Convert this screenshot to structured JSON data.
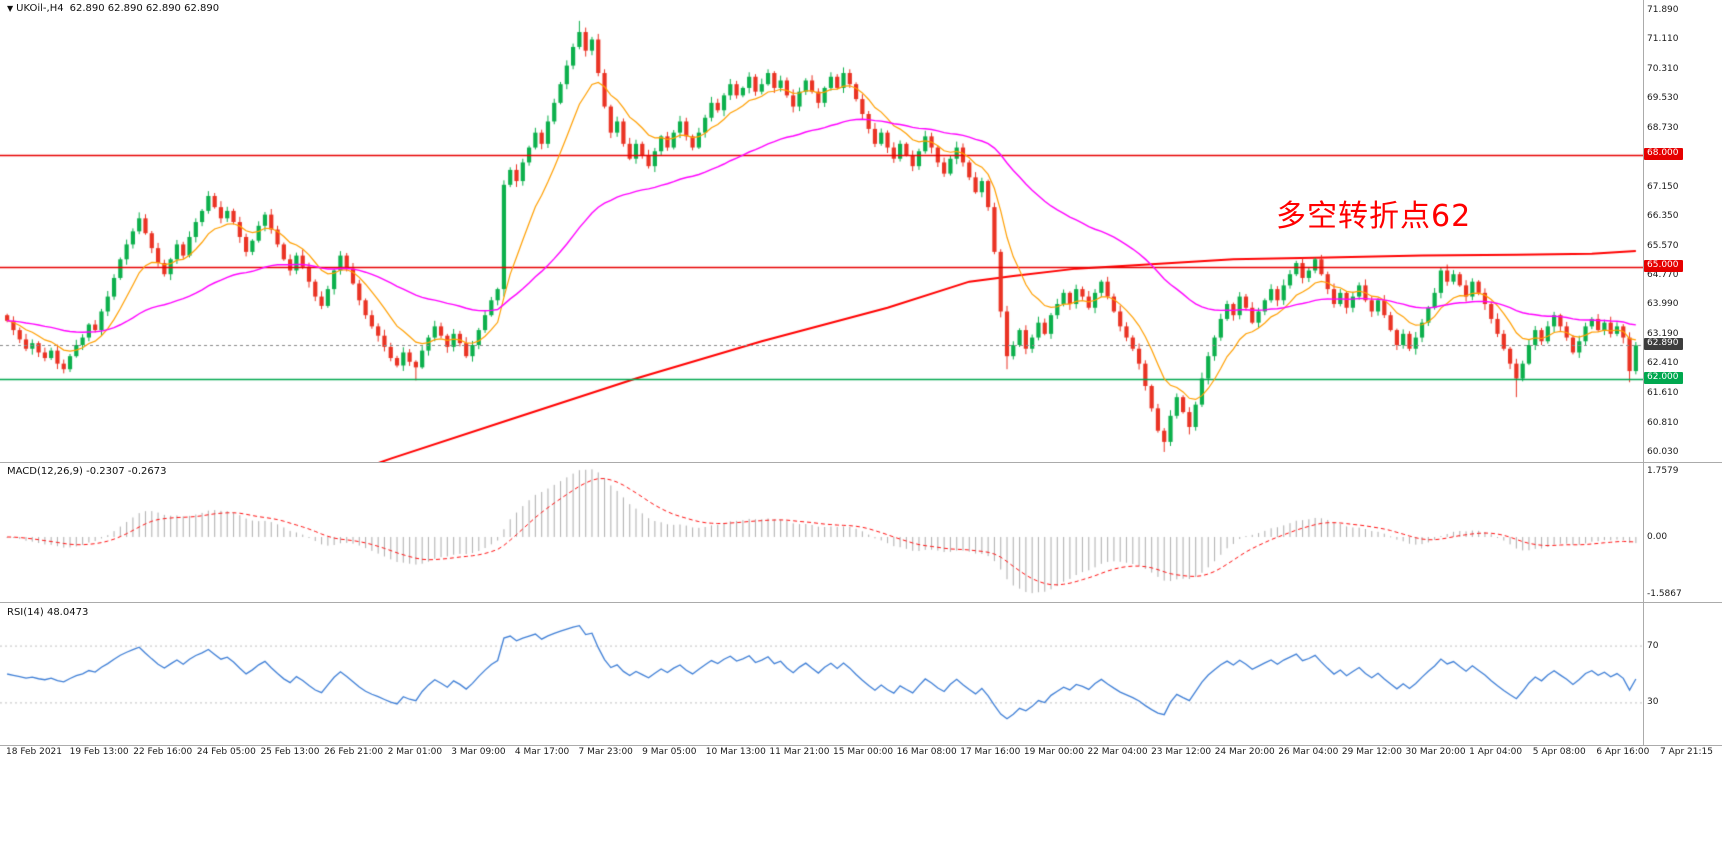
{
  "header": {
    "dropdown_icon": "▼",
    "title": "UKOil-,H4",
    "ohlc": "62.890 62.890 62.890 62.890"
  },
  "annotation": {
    "text": "多空转折点62",
    "color": "#ff0000"
  },
  "macd_panel": {
    "title": "MACD(12,26,9) -0.2307 -0.2673",
    "axis": {
      "max": "1.7579",
      "zero": "0.00",
      "min": "-1.5867"
    }
  },
  "rsi_panel": {
    "title": "RSI(14) 48.0473"
  },
  "price_axis": {
    "labels": [
      {
        "text": "71.890",
        "price": 71.89
      },
      {
        "text": "71.110",
        "price": 71.11
      },
      {
        "text": "70.310",
        "price": 70.31
      },
      {
        "text": "69.530",
        "price": 69.53
      },
      {
        "text": "68.730",
        "price": 68.73
      },
      {
        "text": "67.150",
        "price": 67.15
      },
      {
        "text": "66.350",
        "price": 66.35
      },
      {
        "text": "65.570",
        "price": 65.57
      },
      {
        "text": "64.770",
        "price": 64.77
      },
      {
        "text": "63.990",
        "price": 63.99
      },
      {
        "text": "63.190",
        "price": 63.19
      },
      {
        "text": "62.410",
        "price": 62.41
      },
      {
        "text": "61.610",
        "price": 61.61
      },
      {
        "text": "60.810",
        "price": 60.81
      },
      {
        "text": "60.030",
        "price": 60.03
      }
    ],
    "badges": [
      {
        "text": "68.000",
        "price": 68.0,
        "bg": "#e60000"
      },
      {
        "text": "65.000",
        "price": 65.0,
        "bg": "#e60000"
      },
      {
        "text": "62.890",
        "price": 62.89,
        "bg": "#3d3d3d"
      },
      {
        "text": "62.000",
        "price": 62.0,
        "bg": "#00a84f"
      }
    ]
  },
  "levels": [
    {
      "price": 68.0,
      "color": "#e60000",
      "width": 1.3,
      "style": "solid"
    },
    {
      "price": 65.0,
      "color": "#e60000",
      "width": 1.3,
      "style": "solid"
    },
    {
      "price": 62.0,
      "color": "#00a84f",
      "width": 1.6,
      "style": "solid"
    },
    {
      "price": 62.89,
      "color": "#888888",
      "width": 1,
      "style": "dashed"
    }
  ],
  "colors": {
    "up": "#0cb04c",
    "down": "#ea3324",
    "macd_hist": "#b4b4b4",
    "macd_signal": "#ff1111",
    "rsi_line": "#3f7fd6",
    "rsi_level": "#c0c0c0",
    "axis_text": "#1a1a1a",
    "divider": "#ababab"
  },
  "chart_data": {
    "type": "candlestick",
    "symbol": "UKOil-",
    "timeframe": "H4",
    "current_price": 62.89,
    "price_range": {
      "min": 59.76,
      "max": 72.16
    },
    "first_open": 63.7,
    "closes": [
      63.55,
      63.3,
      63.05,
      62.8,
      62.95,
      62.7,
      62.55,
      62.75,
      62.4,
      62.25,
      62.6,
      62.9,
      63.1,
      63.45,
      63.3,
      63.8,
      64.2,
      64.7,
      65.2,
      65.6,
      65.95,
      66.3,
      65.9,
      65.5,
      65.1,
      64.8,
      65.2,
      65.6,
      65.3,
      65.8,
      66.2,
      66.5,
      66.9,
      66.6,
      66.3,
      66.5,
      66.2,
      65.8,
      65.4,
      65.7,
      66.1,
      66.4,
      66.0,
      65.6,
      65.2,
      64.9,
      65.3,
      65.0,
      64.6,
      64.2,
      63.95,
      64.4,
      64.9,
      65.3,
      64.95,
      64.55,
      64.1,
      63.7,
      63.4,
      63.15,
      62.85,
      62.55,
      62.35,
      62.7,
      62.45,
      62.3,
      62.75,
      63.1,
      63.4,
      63.15,
      62.85,
      63.2,
      62.95,
      62.6,
      62.9,
      63.3,
      63.7,
      64.1,
      64.4,
      67.2,
      67.6,
      67.3,
      67.8,
      68.2,
      68.6,
      68.3,
      68.9,
      69.4,
      69.9,
      70.4,
      70.9,
      71.3,
      70.8,
      71.1,
      70.2,
      69.3,
      68.6,
      68.9,
      68.3,
      67.9,
      68.3,
      68.0,
      67.7,
      68.1,
      68.5,
      68.2,
      68.6,
      68.9,
      68.5,
      68.2,
      68.6,
      69.0,
      69.4,
      69.2,
      69.6,
      69.9,
      69.6,
      69.8,
      70.1,
      69.7,
      69.9,
      70.2,
      69.8,
      70.0,
      69.6,
      69.3,
      69.7,
      70.0,
      69.7,
      69.4,
      69.8,
      70.1,
      69.8,
      70.2,
      69.9,
      69.5,
      69.1,
      68.7,
      68.3,
      68.6,
      68.2,
      67.9,
      68.3,
      68.0,
      67.7,
      68.1,
      68.5,
      68.2,
      67.8,
      67.5,
      67.9,
      68.2,
      67.8,
      67.4,
      67.0,
      67.3,
      66.6,
      65.4,
      63.8,
      62.6,
      62.9,
      63.3,
      62.8,
      63.1,
      63.5,
      63.2,
      63.7,
      64.0,
      64.3,
      64.0,
      64.4,
      64.2,
      63.9,
      64.3,
      64.6,
      64.2,
      63.8,
      63.4,
      63.1,
      62.8,
      62.4,
      61.8,
      61.2,
      60.6,
      60.3,
      61.0,
      61.5,
      61.1,
      60.7,
      61.3,
      62.0,
      62.6,
      63.1,
      63.6,
      64.0,
      63.7,
      64.2,
      63.9,
      63.5,
      63.8,
      64.1,
      64.4,
      64.1,
      64.5,
      64.8,
      65.1,
      64.7,
      64.9,
      65.2,
      64.8,
      64.4,
      64.0,
      64.3,
      63.9,
      64.2,
      64.5,
      64.1,
      63.8,
      64.1,
      63.7,
      63.3,
      62.9,
      63.2,
      62.8,
      63.1,
      63.5,
      63.9,
      64.3,
      64.9,
      64.6,
      64.8,
      64.5,
      64.2,
      64.6,
      64.3,
      64.0,
      63.6,
      63.2,
      62.8,
      62.4,
      62.0,
      62.4,
      62.9,
      63.3,
      63.0,
      63.4,
      63.7,
      63.4,
      63.1,
      62.7,
      63.0,
      63.4,
      63.6,
      63.3,
      63.5,
      63.2,
      63.4,
      63.1,
      62.2,
      62.89
    ],
    "extremes": {
      "65": {
        "low": 61.95
      },
      "79": {
        "low": 64.2
      },
      "91": {
        "high": 71.6
      },
      "159": {
        "low": 62.25
      },
      "184": {
        "low": 60.03
      },
      "188": {
        "low": 60.5
      },
      "240": {
        "low": 61.5
      },
      "258": {
        "low": 61.9
      }
    },
    "moving_averages": [
      {
        "name": "fast-ma",
        "type": "ema",
        "period": 10,
        "color": "#ff9f00",
        "width": 1.2
      },
      {
        "name": "slow-ma",
        "type": "ema",
        "period": 48,
        "color": "#ff00ff",
        "width": 1.4
      },
      {
        "name": "trend-ma",
        "type": "points",
        "color": "#ff0000",
        "width": 2,
        "points": [
          [
            40,
            58.6
          ],
          [
            50,
            59.2
          ],
          [
            61,
            59.85
          ],
          [
            80,
            60.9
          ],
          [
            100,
            62.0
          ],
          [
            120,
            63.0
          ],
          [
            140,
            63.9
          ],
          [
            153,
            64.6
          ],
          [
            160,
            64.75
          ],
          [
            170,
            64.95
          ],
          [
            180,
            65.05
          ],
          [
            195,
            65.2
          ],
          [
            210,
            65.25
          ],
          [
            225,
            65.3
          ],
          [
            240,
            65.32
          ],
          [
            252,
            65.35
          ],
          [
            259,
            65.42
          ]
        ]
      }
    ],
    "indicators": {
      "macd": {
        "fast": 12,
        "slow": 26,
        "signal": 9,
        "current_macd": -0.2307,
        "current_signal": -0.2673,
        "scale_max": 1.7579,
        "scale_min": -1.5867
      },
      "rsi": {
        "period": 14,
        "current": 48.0473,
        "levels": [
          70,
          30
        ]
      }
    },
    "time_labels": [
      "18 Feb 2021",
      "19 Feb 13:00",
      "22 Feb 16:00",
      "24 Feb 05:00",
      "25 Feb 13:00",
      "26 Feb 21:00",
      "2 Mar 01:00",
      "3 Mar 09:00",
      "4 Mar 17:00",
      "7 Mar 23:00",
      "9 Mar 05:00",
      "10 Mar 13:00",
      "11 Mar 21:00",
      "15 Mar 00:00",
      "16 Mar 08:00",
      "17 Mar 16:00",
      "19 Mar 00:00",
      "22 Mar 04:00",
      "23 Mar 12:00",
      "24 Mar 20:00",
      "26 Mar 04:00",
      "29 Mar 12:00",
      "30 Mar 20:00",
      "1 Apr 04:00",
      "5 Apr 08:00",
      "6 Apr 16:00",
      "7 Apr 21:15"
    ]
  }
}
